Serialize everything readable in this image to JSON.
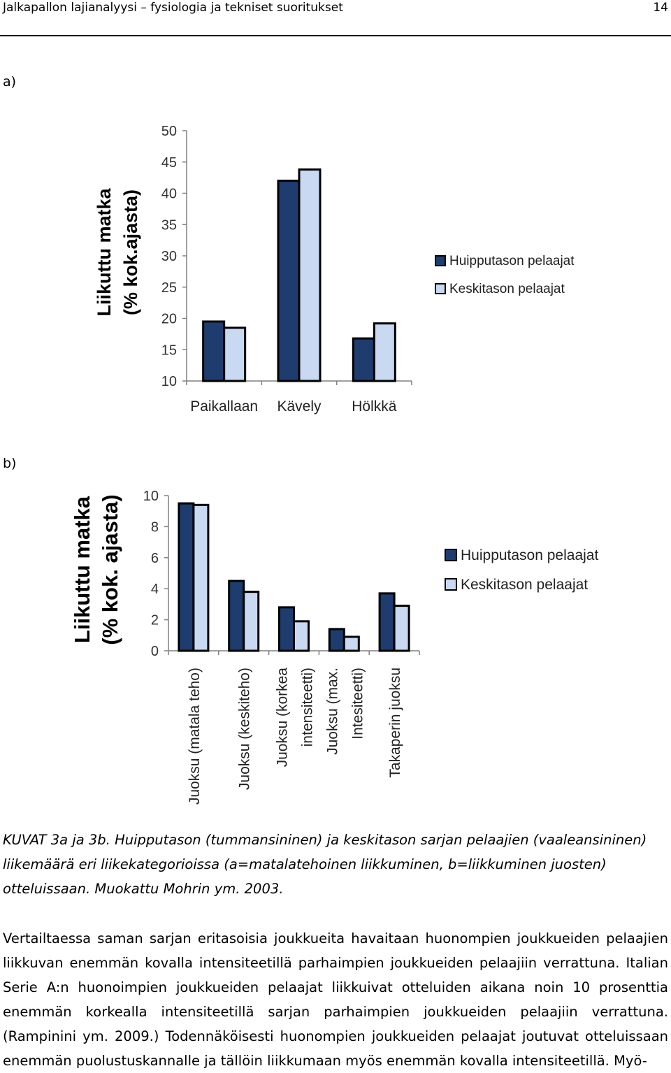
{
  "header": {
    "title": "Jalkapallon lajianalyysi – fysiologia ja tekniset suoritukset",
    "page_number": "14"
  },
  "panel_a_label": "a)",
  "panel_b_label": "b)",
  "colors": {
    "dark": "#1f3c6e",
    "light": "#c9d9f2",
    "axis": "#808080"
  },
  "chart_data": [
    {
      "type": "bar",
      "categories": [
        "Paikallaan",
        "Kävely",
        "Hölkkä"
      ],
      "series": [
        {
          "name": "Huipputason pelaajat",
          "values": [
            19.5,
            42,
            16.8
          ]
        },
        {
          "name": "Keskitason pelaajat",
          "values": [
            18.5,
            43.8,
            19.2
          ]
        }
      ],
      "ylabel_line1": "Liikuttu matka",
      "ylabel_line2": "(% kok.ajasta)",
      "ylim": [
        10,
        50
      ],
      "yticks": [
        "10",
        "15",
        "20",
        "25",
        "30",
        "35",
        "40",
        "45",
        "50"
      ],
      "legend": "right",
      "grid": false
    },
    {
      "type": "bar",
      "categories": [
        "Juoksu (matala teho)",
        "Juoksu (keskiteho)",
        "Juoksu (korkea intensiteetti)",
        "Juoksu (max. Intesiteetti)",
        "Takaperin juoksu"
      ],
      "category_lines": [
        [
          "Juoksu (matala teho)"
        ],
        [
          "Juoksu (keskiteho)"
        ],
        [
          "Juoksu (korkea",
          "intensiteetti)"
        ],
        [
          "Juoksu (max.",
          "Intesiteetti)"
        ],
        [
          "Takaperin juoksu"
        ]
      ],
      "series": [
        {
          "name": "Huipputason pelaajat",
          "values": [
            9.5,
            4.5,
            2.8,
            1.4,
            3.7
          ]
        },
        {
          "name": "Keskitason pelaajat",
          "values": [
            9.4,
            3.8,
            1.9,
            0.9,
            2.9
          ]
        }
      ],
      "ylabel_line1": "Liikuttu matka",
      "ylabel_line2": "(% kok. ajasta)",
      "ylim": [
        0,
        10
      ],
      "yticks": [
        "0",
        "2",
        "4",
        "6",
        "8",
        "10"
      ],
      "legend": "right",
      "grid": false
    }
  ],
  "caption": "KUVAT 3a ja 3b. Huipputason (tummansininen) ja keskitason sarjan pelaajien (vaaleansininen) liikemäärä eri liikekategorioissa (a=matalatehoinen liikkuminen, b=liikkuminen juosten) otteluissaan. Muokattu Mohrin ym. 2003.",
  "body_text": "Vertailtaessa saman sarjan eritasoisia joukkueita havaitaan huonompien joukkueiden pelaajien liikkuvan enemmän kovalla intensiteetillä parhaimpien joukkueiden pelaajiin verrattuna. Italian Serie A:n huonoimpien joukkueiden pelaajat liikkuivat otteluiden aikana noin 10 prosenttia enemmän korkealla intensiteetillä sarjan parhaimpien joukkueiden pelaajiin verrattuna. (Rampinini ym. 2009.) Todennäköisesti huonompien joukkueiden pelaajat joutuvat otteluissaan enemmän puolustuskannalle ja tällöin liikkumaan myös enemmän kovalla intensiteetillä. Myö-"
}
